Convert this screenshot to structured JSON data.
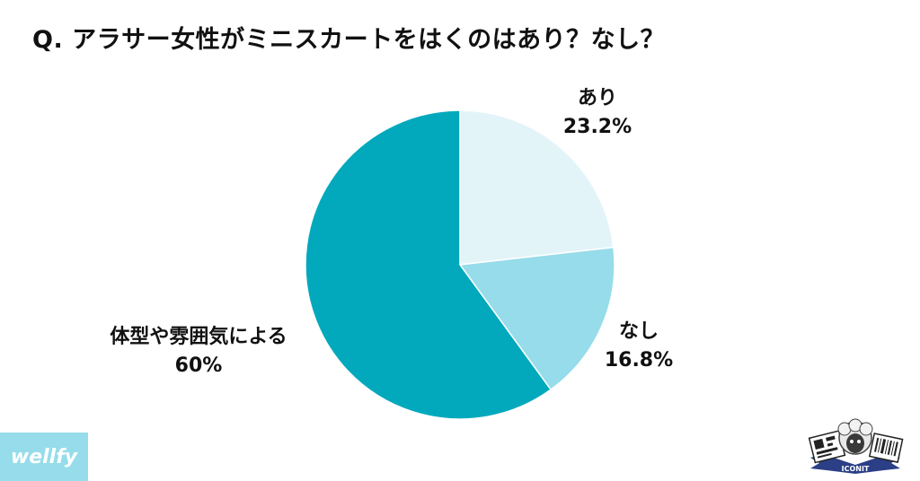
{
  "title": "Q. アラサー女性がミニスカートをはくのはあり？なし？",
  "chart_data": {
    "type": "pie",
    "slices": [
      {
        "label": "あり",
        "value": 23.2,
        "display": "23.2%",
        "color": "#e3f4f9"
      },
      {
        "label": "なし",
        "value": 16.8,
        "display": "16.8%",
        "color": "#96dcea"
      },
      {
        "label": "体型や雰囲気による",
        "value": 60,
        "display": "60%",
        "color": "#02a9bd"
      }
    ]
  },
  "brand": {
    "name": "wellfy",
    "color": "#96dcea"
  },
  "stamp": {
    "text": "ICONIT"
  }
}
